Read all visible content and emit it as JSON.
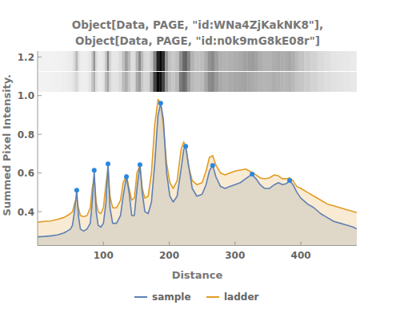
{
  "chart_data": {
    "type": "line",
    "title": [
      "Object[Data, PAGE, \"id:WNa4ZjKakNK8\"],",
      "Object[Data, PAGE, \"id:n0k9mG8kE08r\"]"
    ],
    "x_label": "Distance",
    "y_label": "Summed Pixel Intensity.",
    "x": [
      0,
      10,
      20,
      30,
      40,
      45,
      50,
      53,
      56,
      59.5,
      62,
      65,
      70,
      75,
      80,
      83,
      86,
      89,
      92,
      96,
      100,
      104,
      107,
      110,
      114,
      120,
      126,
      130,
      135,
      139,
      143,
      147,
      151,
      155.5,
      159,
      163,
      168,
      173,
      178,
      183,
      187,
      191,
      196,
      201,
      206,
      212,
      218,
      222,
      225,
      229,
      235,
      242,
      250,
      256,
      261,
      266,
      271,
      278,
      285,
      292,
      300,
      308,
      316,
      322,
      326,
      332,
      338,
      345,
      352,
      360,
      366,
      372,
      378,
      383,
      388,
      394,
      400,
      410,
      420,
      430,
      440,
      450,
      460,
      470,
      480,
      485
    ],
    "series": [
      {
        "name": "sample",
        "color": "#5e81b5",
        "values": [
          0.27,
          0.272,
          0.275,
          0.28,
          0.29,
          0.3,
          0.31,
          0.33,
          0.4,
          0.51,
          0.38,
          0.31,
          0.3,
          0.31,
          0.34,
          0.45,
          0.61,
          0.4,
          0.33,
          0.32,
          0.34,
          0.45,
          0.65,
          0.42,
          0.34,
          0.34,
          0.38,
          0.48,
          0.58,
          0.5,
          0.38,
          0.38,
          0.52,
          0.64,
          0.5,
          0.4,
          0.39,
          0.45,
          0.65,
          0.9,
          0.96,
          0.88,
          0.6,
          0.48,
          0.45,
          0.48,
          0.62,
          0.72,
          0.74,
          0.65,
          0.52,
          0.48,
          0.49,
          0.54,
          0.61,
          0.64,
          0.58,
          0.53,
          0.52,
          0.53,
          0.54,
          0.55,
          0.57,
          0.585,
          0.59,
          0.57,
          0.54,
          0.52,
          0.52,
          0.54,
          0.55,
          0.54,
          0.545,
          0.56,
          0.54,
          0.5,
          0.47,
          0.44,
          0.42,
          0.39,
          0.37,
          0.35,
          0.34,
          0.33,
          0.32,
          0.31
        ]
      },
      {
        "name": "ladder",
        "color": "#e19c24",
        "values": [
          0.345,
          0.35,
          0.352,
          0.36,
          0.37,
          0.38,
          0.39,
          0.4,
          0.44,
          0.47,
          0.42,
          0.38,
          0.375,
          0.38,
          0.42,
          0.52,
          0.58,
          0.45,
          0.4,
          0.39,
          0.42,
          0.55,
          0.62,
          0.48,
          0.42,
          0.42,
          0.46,
          0.55,
          0.59,
          0.52,
          0.46,
          0.47,
          0.6,
          0.64,
          0.52,
          0.47,
          0.48,
          0.6,
          0.85,
          0.98,
          0.96,
          0.85,
          0.65,
          0.55,
          0.52,
          0.56,
          0.72,
          0.76,
          0.74,
          0.64,
          0.56,
          0.54,
          0.55,
          0.61,
          0.68,
          0.69,
          0.64,
          0.6,
          0.59,
          0.6,
          0.61,
          0.615,
          0.62,
          0.61,
          0.6,
          0.59,
          0.575,
          0.57,
          0.575,
          0.59,
          0.585,
          0.57,
          0.57,
          0.575,
          0.56,
          0.53,
          0.52,
          0.5,
          0.48,
          0.46,
          0.44,
          0.43,
          0.42,
          0.41,
          0.4,
          0.395
        ]
      },
      {
        "type": "scatter",
        "marker": "circle",
        "color": "#2a87e0",
        "x": [
          59.5,
          86,
          107,
          135,
          155.5,
          187,
          225,
          266,
          326,
          383
        ],
        "values": [
          0.511,
          0.614,
          0.647,
          0.581,
          0.643,
          0.961,
          0.738,
          0.639,
          0.594,
          0.561
        ]
      }
    ],
    "xlim": [
      0,
      485
    ],
    "ylim": [
      0.225,
      1.23
    ],
    "xticks": [
      100,
      200,
      300,
      400
    ],
    "yticks": [
      0.4,
      0.6,
      0.8,
      {
        "value": 1,
        "label": "1.0"
      },
      1.2
    ],
    "legend": "bottom"
  }
}
